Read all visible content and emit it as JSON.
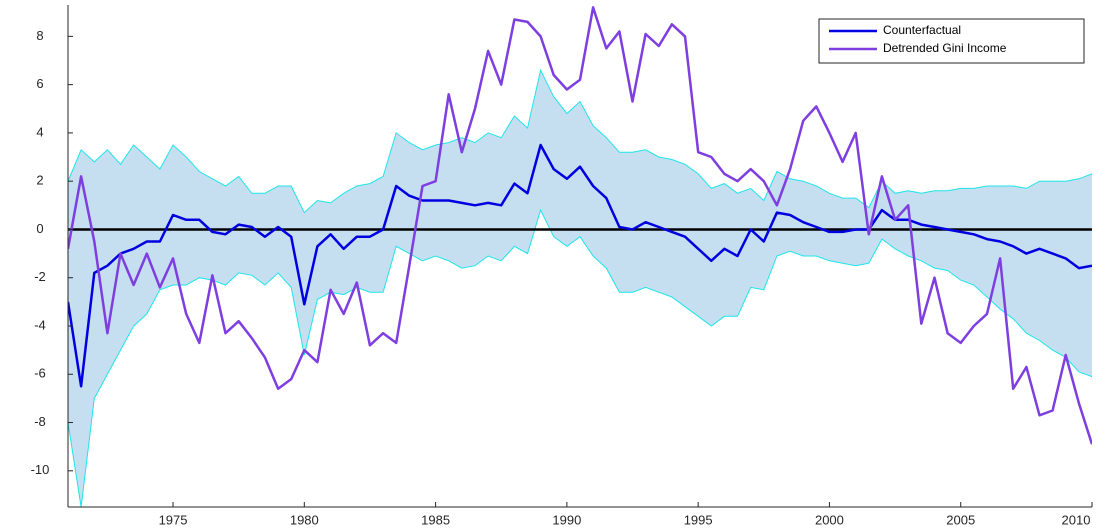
{
  "chart_data": {
    "type": "line",
    "x": [
      1971.0,
      1971.5,
      1972.0,
      1972.5,
      1973.0,
      1973.5,
      1974.0,
      1974.5,
      1975.0,
      1975.5,
      1976.0,
      1976.5,
      1977.0,
      1977.5,
      1978.0,
      1978.5,
      1979.0,
      1979.5,
      1980.0,
      1980.5,
      1981.0,
      1981.5,
      1982.0,
      1982.5,
      1983.0,
      1983.5,
      1984.0,
      1984.5,
      1985.0,
      1985.5,
      1986.0,
      1986.5,
      1987.0,
      1987.5,
      1988.0,
      1988.5,
      1989.0,
      1989.5,
      1990.0,
      1990.5,
      1991.0,
      1991.5,
      1992.0,
      1992.5,
      1993.0,
      1993.5,
      1994.0,
      1994.5,
      1995.0,
      1995.5,
      1996.0,
      1996.5,
      1997.0,
      1997.5,
      1998.0,
      1998.5,
      1999.0,
      1999.5,
      2000.0,
      2000.5,
      2001.0,
      2001.5,
      2002.0,
      2002.5,
      2003.0,
      2003.5,
      2004.0,
      2004.5,
      2005.0,
      2005.5,
      2006.0,
      2006.5,
      2007.0,
      2007.5,
      2008.0,
      2008.5,
      2009.0,
      2009.5,
      2010.0
    ],
    "band": {
      "fill": "#c6dff0",
      "stroke": "#1de5e8",
      "upper": [
        2,
        3.3,
        2.8,
        3.3,
        2.7,
        3.5,
        3,
        2.5,
        3.5,
        3,
        2.4,
        2.1,
        1.8,
        2.2,
        1.5,
        1.5,
        1.8,
        1.8,
        0.7,
        1.2,
        1.1,
        1.5,
        1.8,
        1.9,
        2.2,
        4,
        3.6,
        3.3,
        3.5,
        3.6,
        3.8,
        3.6,
        4,
        3.8,
        4.7,
        4.2,
        6.6,
        5.5,
        4.8,
        5.3,
        4.3,
        3.8,
        3.2,
        3.2,
        3.3,
        3,
        2.9,
        2.7,
        2.3,
        1.7,
        1.9,
        1.5,
        1.7,
        1.2,
        2.4,
        2.1,
        2,
        1.8,
        1.5,
        1.3,
        1.3,
        0.9,
        2,
        1.5,
        1.6,
        1.5,
        1.6,
        1.6,
        1.7,
        1.7,
        1.8,
        1.8,
        1.8,
        1.7,
        2,
        2,
        2,
        2.1,
        2.3
      ],
      "lower": [
        -8,
        -11.5,
        -7,
        -6,
        -5,
        -4,
        -3.5,
        -2.5,
        -2.3,
        -2.3,
        -2,
        -2.1,
        -2.3,
        -1.8,
        -1.9,
        -2.3,
        -1.8,
        -2.4,
        -5.2,
        -2.9,
        -2.6,
        -2.7,
        -2.4,
        -2.6,
        -2.6,
        -0.7,
        -1,
        -1.3,
        -1.1,
        -1.3,
        -1.6,
        -1.5,
        -1.1,
        -1.3,
        -0.7,
        -1,
        0.8,
        -0.3,
        -0.7,
        -0.3,
        -1.1,
        -1.6,
        -2.6,
        -2.6,
        -2.4,
        -2.6,
        -2.8,
        -3.2,
        -3.6,
        -4,
        -3.6,
        -3.6,
        -2.4,
        -2.5,
        -1.1,
        -0.9,
        -1.1,
        -1.1,
        -1.3,
        -1.4,
        -1.5,
        -1.4,
        -0.4,
        -0.8,
        -1.1,
        -1.3,
        -1.6,
        -1.7,
        -2.1,
        -2.3,
        -2.8,
        -3.3,
        -3.7,
        -4.3,
        -4.6,
        -5,
        -5.3,
        -5.9,
        -6.1
      ]
    },
    "series": [
      {
        "name": "Counterfactual",
        "color": "#0000e0",
        "width": 2.5,
        "values": [
          -3,
          -6.5,
          -1.8,
          -1.5,
          -1,
          -0.8,
          -0.5,
          -0.5,
          0.6,
          0.4,
          0.4,
          -0.1,
          -0.2,
          0.2,
          0.1,
          -0.3,
          0.1,
          -0.3,
          -3.1,
          -0.7,
          -0.2,
          -0.8,
          -0.3,
          -0.3,
          0,
          1.8,
          1.4,
          1.2,
          1.2,
          1.2,
          1.1,
          1,
          1.1,
          1,
          1.9,
          1.5,
          3.5,
          2.5,
          2.1,
          2.6,
          1.8,
          1.3,
          0.1,
          0,
          0.3,
          0.1,
          -0.1,
          -0.3,
          -0.8,
          -1.3,
          -0.8,
          -1.1,
          0,
          -0.5,
          0.7,
          0.6,
          0.3,
          0.1,
          -0.1,
          -0.1,
          0,
          0,
          0.8,
          0.4,
          0.4,
          0.2,
          0.1,
          0,
          -0.1,
          -0.2,
          -0.4,
          -0.5,
          -0.7,
          -1,
          -0.8,
          -1,
          -1.2,
          -1.6,
          -1.5
        ]
      },
      {
        "name": "Detrended Gini Income",
        "color": "#7e3ee0",
        "width": 2.5,
        "values": [
          -0.8,
          2.2,
          -0.5,
          -4.3,
          -1,
          -2.3,
          -1,
          -2.4,
          -1.2,
          -3.5,
          -4.7,
          -1.9,
          -4.3,
          -3.8,
          -4.5,
          -5.3,
          -6.6,
          -6.2,
          -5,
          -5.5,
          -2.5,
          -3.5,
          -2.2,
          -4.8,
          -4.3,
          -4.7,
          -1.5,
          1.8,
          2,
          5.6,
          3.2,
          5,
          7.4,
          6,
          8.7,
          8.6,
          8,
          6.4,
          5.8,
          6.2,
          9.2,
          7.5,
          8.2,
          5.3,
          8.1,
          7.6,
          8.5,
          8,
          3.2,
          3,
          2.3,
          2,
          2.5,
          2,
          1,
          2.5,
          4.5,
          5.1,
          4,
          2.8,
          4,
          -0.2,
          2.2,
          0.4,
          1,
          -3.9,
          -2,
          -4.3,
          -4.7,
          -4,
          -3.5,
          -1.2,
          -6.6,
          -5.7,
          -7.7,
          -7.5,
          -5.2,
          -7.2,
          -8.9
        ]
      }
    ],
    "xlim": [
      1971,
      2010
    ],
    "xticks": [
      1975,
      1980,
      1985,
      1990,
      1995,
      2000,
      2005,
      2010
    ],
    "ylim": [
      -11.5,
      9.3
    ],
    "yticks": [
      -10,
      -8,
      -6,
      -4,
      -2,
      0,
      2,
      4,
      6,
      8
    ],
    "zero_line": true,
    "legend": "top-right"
  }
}
